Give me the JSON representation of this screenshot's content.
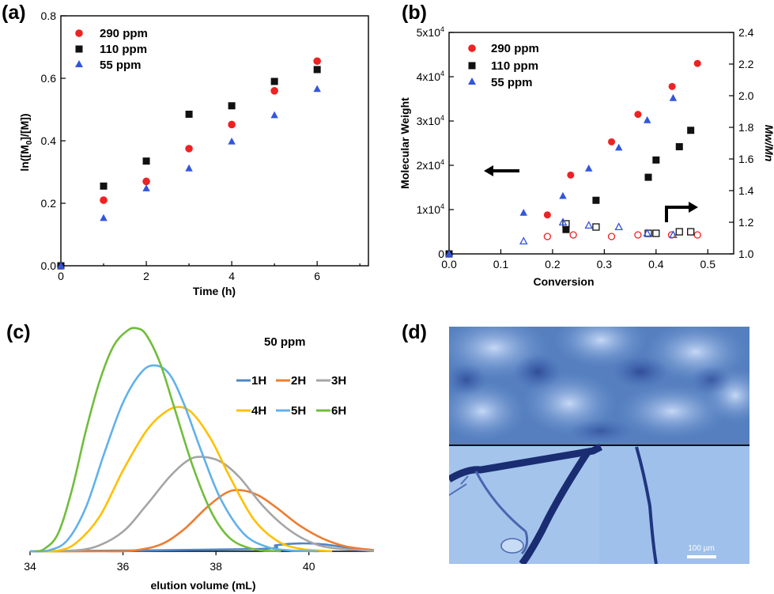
{
  "chart_data": [
    {
      "panel": "(a)",
      "type": "scatter",
      "xlabel": "Time (h)",
      "ylabel_parts": [
        "ln([M",
        "0",
        "]/[M])"
      ],
      "xlim": [
        0,
        7.2
      ],
      "ylim": [
        0,
        0.8
      ],
      "xticks": [
        "0",
        "2",
        "4",
        "6"
      ],
      "yticks": [
        "0.0",
        "0.2",
        "0.4",
        "0.6",
        "0.8"
      ],
      "legend_position": "top-left",
      "series": [
        {
          "name": "290 ppm",
          "marker": "circle",
          "color": "#ee2222",
          "x": [
            0,
            1,
            2,
            3,
            4,
            5,
            6
          ],
          "y": [
            0,
            0.21,
            0.27,
            0.375,
            0.452,
            0.56,
            0.655
          ]
        },
        {
          "name": "110 ppm",
          "marker": "square",
          "color": "#111111",
          "x": [
            0,
            1,
            2,
            3,
            4,
            5,
            6
          ],
          "y": [
            0,
            0.255,
            0.335,
            0.485,
            0.512,
            0.59,
            0.628
          ]
        },
        {
          "name": "55 ppm",
          "marker": "triangle",
          "color": "#3355dd",
          "x": [
            0,
            1,
            2,
            3,
            4,
            5,
            6
          ],
          "y": [
            0,
            0.153,
            0.248,
            0.312,
            0.398,
            0.482,
            0.566
          ]
        }
      ]
    },
    {
      "panel": "(b)",
      "type": "scatter",
      "xlabel": "Conversion",
      "ylabel": "Molecular Weight",
      "y2label": "Mw/Mn",
      "xlim": [
        0,
        0.55
      ],
      "ylim": [
        0,
        50000
      ],
      "y2lim": [
        1.0,
        2.4
      ],
      "xticks": [
        "0.0",
        "0.1",
        "0.2",
        "0.3",
        "0.4",
        "0.5"
      ],
      "yticks": [
        "0",
        "1x10",
        "2x10",
        "3x10",
        "4x10",
        "5x10"
      ],
      "ytick_exp": "4",
      "y2ticks": [
        "1.0",
        "1.2",
        "1.4",
        "1.6",
        "1.8",
        "2.0",
        "2.2",
        "2.4"
      ],
      "legend_position": "top-left",
      "series": [
        {
          "name": "290 ppm",
          "axis": "left",
          "marker": "circle",
          "filled": true,
          "color": "#ee2222",
          "x": [
            0,
            0.19,
            0.235,
            0.314,
            0.365,
            0.431,
            0.48
          ],
          "y": [
            0,
            8800,
            17800,
            25300,
            31500,
            37800,
            43000
          ]
        },
        {
          "name": "110 ppm",
          "axis": "left",
          "marker": "square",
          "filled": true,
          "color": "#111111",
          "x": [
            0,
            0.226,
            0.284,
            0.385,
            0.4,
            0.445,
            0.467
          ],
          "y": [
            0,
            5500,
            12100,
            17300,
            21200,
            24200,
            27900
          ]
        },
        {
          "name": "55 ppm",
          "axis": "left",
          "marker": "triangle",
          "filled": true,
          "color": "#3355dd",
          "x": [
            0,
            0.144,
            0.22,
            0.27,
            0.328,
            0.383,
            0.433
          ],
          "y": [
            0,
            9300,
            13100,
            19300,
            24000,
            30200,
            35200
          ]
        },
        {
          "name": "290 ppm Mw/Mn",
          "axis": "right",
          "marker": "circle",
          "filled": false,
          "color": "#ee2222",
          "x": [
            0.19,
            0.24,
            0.314,
            0.365,
            0.43,
            0.48
          ],
          "y": [
            1.11,
            1.12,
            1.11,
            1.12,
            1.12,
            1.12
          ]
        },
        {
          "name": "110 ppm Mw/Mn",
          "axis": "right",
          "marker": "square",
          "filled": false,
          "color": "#111111",
          "x": [
            0.226,
            0.284,
            0.385,
            0.4,
            0.445,
            0.467
          ],
          "y": [
            1.19,
            1.17,
            1.13,
            1.13,
            1.14,
            1.14
          ]
        },
        {
          "name": "55 ppm Mw/Mn",
          "axis": "right",
          "marker": "triangle",
          "filled": false,
          "color": "#3355dd",
          "x": [
            0.144,
            0.22,
            0.27,
            0.328,
            0.383,
            0.433
          ],
          "y": [
            1.08,
            1.2,
            1.18,
            1.17,
            1.13,
            1.12
          ]
        }
      ]
    },
    {
      "panel": "(c)",
      "type": "line",
      "title": "50 ppm",
      "xlabel": "elution volume (mL)",
      "ylabel": "",
      "xlim": [
        34,
        41.4
      ],
      "ylim": [
        0,
        1.06
      ],
      "xticks": [
        "34",
        "36",
        "38",
        "40"
      ],
      "legend_position": "right",
      "series": [
        {
          "name": "1H",
          "color": "#4f86c6",
          "x": [
            34,
            38.8,
            39.3,
            39.8,
            40.3,
            40.8,
            41.4
          ],
          "y": [
            0,
            0.01,
            0.028,
            0.036,
            0.032,
            0.018,
            0.005
          ]
        },
        {
          "name": "2H",
          "color": "#ed7d31",
          "x": [
            34,
            35.5,
            36.2,
            36.8,
            37.3,
            37.8,
            38.2,
            38.5,
            38.9,
            39.3,
            39.8,
            40.3,
            40.8,
            41.4
          ],
          "y": [
            0,
            0,
            0.003,
            0.03,
            0.098,
            0.2,
            0.265,
            0.28,
            0.257,
            0.2,
            0.118,
            0.058,
            0.022,
            0.005
          ]
        },
        {
          "name": "3H",
          "color": "#a5a5a5",
          "x": [
            34,
            34.8,
            35.4,
            36,
            36.5,
            37,
            37.4,
            37.7,
            38.1,
            38.5,
            39,
            39.5,
            40,
            40.5,
            41.4
          ],
          "y": [
            0,
            0.002,
            0.02,
            0.09,
            0.21,
            0.34,
            0.416,
            0.432,
            0.41,
            0.34,
            0.21,
            0.11,
            0.045,
            0.015,
            0.002
          ]
        },
        {
          "name": "4H",
          "color": "#ffc000",
          "x": [
            34,
            34.6,
            35,
            35.5,
            36,
            36.5,
            36.9,
            37.2,
            37.5,
            37.9,
            38.3,
            38.8,
            39.3,
            39.8,
            40.5
          ],
          "y": [
            0,
            0.003,
            0.04,
            0.16,
            0.37,
            0.55,
            0.635,
            0.66,
            0.63,
            0.51,
            0.34,
            0.15,
            0.05,
            0.012,
            0
          ]
        },
        {
          "name": "5H",
          "color": "#62b1e8",
          "x": [
            34,
            34.4,
            34.8,
            35.2,
            35.6,
            36,
            36.4,
            36.7,
            37,
            37.3,
            37.7,
            38.1,
            38.6,
            39.1,
            39.6,
            40.2
          ],
          "y": [
            0,
            0.004,
            0.05,
            0.2,
            0.45,
            0.68,
            0.82,
            0.85,
            0.81,
            0.68,
            0.45,
            0.24,
            0.08,
            0.02,
            0.004,
            0
          ]
        },
        {
          "name": "6H",
          "color": "#71bd3b",
          "x": [
            34.1,
            34.3,
            34.6,
            34.9,
            35.2,
            35.5,
            35.8,
            36.1,
            36.3,
            36.5,
            36.8,
            37.1,
            37.5,
            37.9,
            38.3,
            38.8,
            39.4
          ],
          "y": [
            0,
            0.01,
            0.08,
            0.28,
            0.55,
            0.78,
            0.94,
            1.01,
            1.02,
            0.99,
            0.86,
            0.66,
            0.39,
            0.18,
            0.06,
            0.01,
            0
          ]
        }
      ]
    }
  ],
  "panel_d": {
    "label": "(d)",
    "scale_bar": "100 µm",
    "colors": {
      "top_bg": "#5b86c4",
      "bottom_bg": "#9fc0ea",
      "crack": "#1a2d72"
    }
  },
  "panel_labels": [
    "(a)",
    "(b)",
    "(c)",
    "(d)"
  ],
  "arrow_icons": [
    "left-arrow-icon",
    "right-hook-arrow-icon"
  ]
}
